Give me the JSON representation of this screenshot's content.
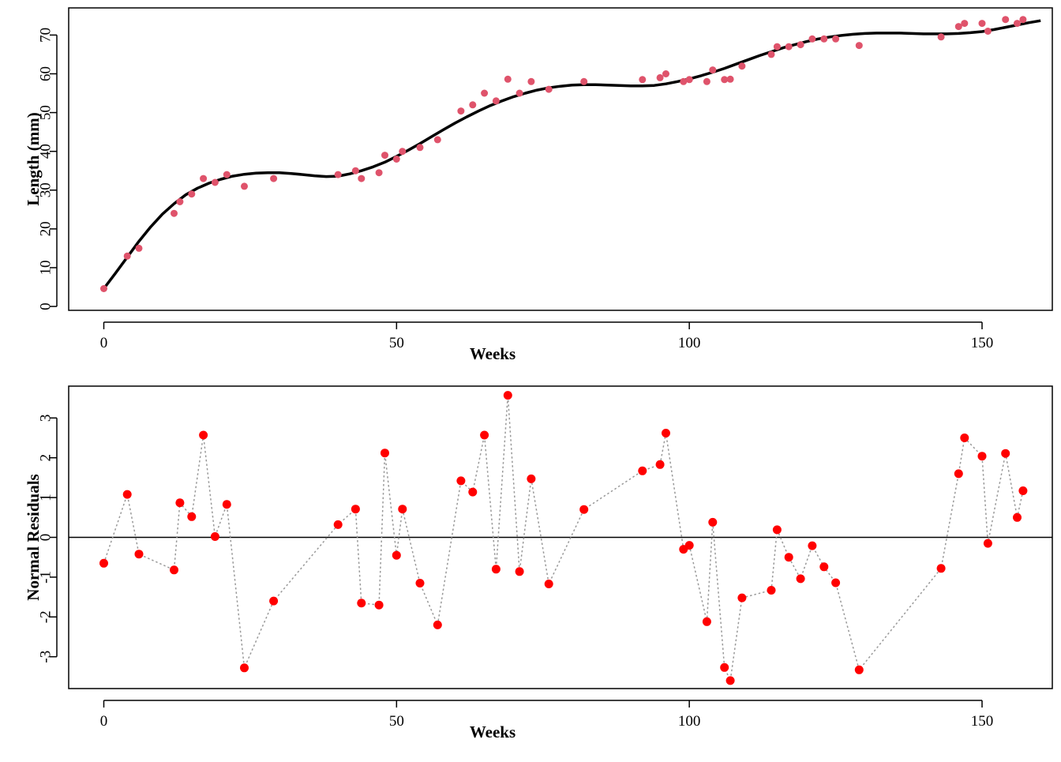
{
  "charts": [
    {
      "id": "growth",
      "type": "scatter",
      "xlabel": "Weeks",
      "ylabel": "Length (mm)",
      "xlim": [
        -6,
        162
      ],
      "ylim": [
        -1,
        77
      ],
      "xticks": [
        0,
        50,
        100,
        150
      ],
      "yticks": [
        0,
        10,
        20,
        30,
        40,
        50,
        60,
        70
      ],
      "point_color": "#DF536B",
      "line_color": "#000000",
      "points": {
        "x": [
          0,
          4,
          6,
          12,
          13,
          15,
          17,
          19,
          21,
          24,
          29,
          40,
          43,
          44,
          47,
          48,
          50,
          51,
          54,
          57,
          61,
          63,
          65,
          67,
          69,
          71,
          73,
          76,
          82,
          92,
          95,
          96,
          99,
          100,
          103,
          104,
          106,
          107,
          109,
          114,
          115,
          117,
          119,
          121,
          123,
          125,
          129,
          143,
          146,
          147,
          150,
          151,
          154,
          156,
          157
        ],
        "y": [
          4.6,
          13,
          15,
          24,
          27,
          29,
          33,
          32,
          34,
          31,
          33,
          34,
          35,
          33,
          34.5,
          39,
          38,
          40,
          41,
          43,
          50.4,
          52,
          55,
          53,
          58.6,
          55,
          58,
          56,
          58,
          58.5,
          59,
          60,
          58,
          58.5,
          58,
          61,
          58.5,
          58.6,
          62,
          65,
          67,
          67,
          67.5,
          69,
          69,
          69,
          67.3,
          69.5,
          72.2,
          73,
          73,
          71,
          74,
          73,
          74
        ]
      },
      "fit_line": {
        "x": [
          0,
          2,
          4,
          6,
          8,
          10,
          12,
          14,
          16,
          18,
          20,
          22,
          24,
          26,
          28,
          30,
          32,
          34,
          36,
          38,
          40,
          42,
          44,
          46,
          48,
          50,
          52,
          54,
          56,
          58,
          60,
          62,
          64,
          66,
          68,
          70,
          72,
          74,
          76,
          78,
          80,
          82,
          84,
          86,
          88,
          90,
          92,
          94,
          96,
          98,
          100,
          102,
          104,
          106,
          108,
          110,
          112,
          114,
          116,
          118,
          120,
          122,
          124,
          126,
          128,
          130,
          132,
          134,
          136,
          138,
          140,
          142,
          144,
          146,
          148,
          150,
          152,
          154,
          156,
          158,
          160
        ],
        "y": [
          4.6,
          8.6,
          12.7,
          16.8,
          20.5,
          23.8,
          26.5,
          28.8,
          30.5,
          31.8,
          32.8,
          33.6,
          34.1,
          34.4,
          34.5,
          34.5,
          34.3,
          34.0,
          33.7,
          33.5,
          33.6,
          34.2,
          35.0,
          36.0,
          37.2,
          38.7,
          40.3,
          42.0,
          43.8,
          45.6,
          47.3,
          48.9,
          50.4,
          51.8,
          53.0,
          54.1,
          55.0,
          55.8,
          56.4,
          56.8,
          57.1,
          57.2,
          57.2,
          57.1,
          57.0,
          56.9,
          56.9,
          57.0,
          57.4,
          58.0,
          58.7,
          59.5,
          60.4,
          61.4,
          62.5,
          63.6,
          64.7,
          65.7,
          66.7,
          67.5,
          68.3,
          69.0,
          69.5,
          69.9,
          70.2,
          70.4,
          70.5,
          70.5,
          70.5,
          70.4,
          70.3,
          70.3,
          70.3,
          70.4,
          70.6,
          70.9,
          71.4,
          72.0,
          72.6,
          73.2,
          73.7
        ]
      }
    },
    {
      "id": "residuals",
      "type": "scatter",
      "xlabel": "Weeks",
      "ylabel": "Normal Residuals",
      "xlim": [
        -6,
        162
      ],
      "ylim": [
        -3.8,
        3.8
      ],
      "xticks": [
        0,
        50,
        100,
        150
      ],
      "yticks": [
        -3,
        -2,
        -1,
        0,
        1,
        2,
        3
      ],
      "point_color": "#FF0000",
      "connector_color": "#999999",
      "reference_line_y": 0,
      "points": {
        "x": [
          0,
          4,
          6,
          12,
          13,
          15,
          17,
          19,
          21,
          24,
          29,
          40,
          43,
          44,
          47,
          48,
          50,
          51,
          54,
          57,
          61,
          63,
          65,
          67,
          69,
          71,
          73,
          76,
          82,
          92,
          95,
          96,
          99,
          100,
          103,
          104,
          106,
          107,
          109,
          114,
          115,
          117,
          119,
          121,
          123,
          125,
          129,
          143,
          146,
          147,
          150,
          151,
          154,
          156,
          157
        ],
        "y": [
          -0.65,
          1.08,
          -0.42,
          -0.82,
          0.87,
          0.52,
          2.57,
          0.02,
          0.83,
          -3.28,
          -1.6,
          0.32,
          0.71,
          -1.65,
          -1.7,
          2.12,
          -0.45,
          0.71,
          -1.15,
          -2.2,
          1.42,
          1.14,
          2.57,
          -0.8,
          3.57,
          -0.86,
          1.47,
          -1.17,
          0.7,
          1.67,
          1.83,
          2.62,
          -0.3,
          -0.2,
          -2.12,
          0.38,
          -3.27,
          -3.6,
          -1.52,
          -1.33,
          0.19,
          -0.5,
          -1.04,
          -0.21,
          -0.74,
          -1.14,
          -3.33,
          -0.78,
          1.6,
          2.5,
          2.04,
          -0.15,
          2.11,
          0.5,
          1.17
        ]
      }
    }
  ]
}
